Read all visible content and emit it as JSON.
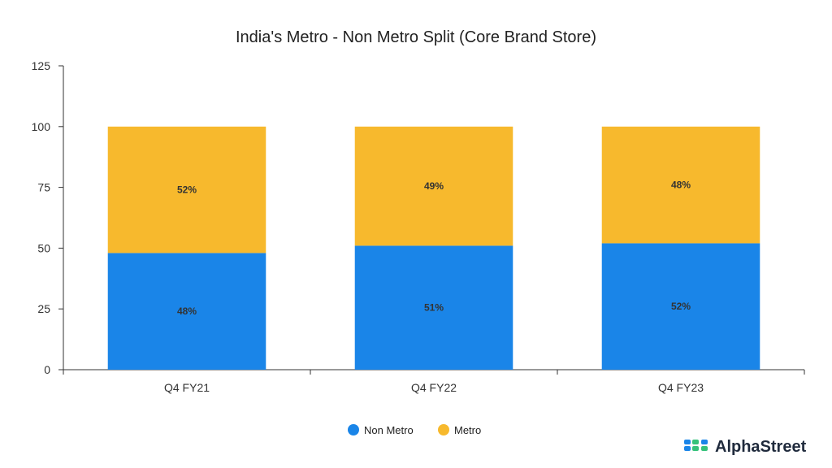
{
  "chart_data": {
    "type": "bar",
    "stacked": true,
    "title": "India's Metro - Non Metro Split (Core Brand Store)",
    "categories": [
      "Q4 FY21",
      "Q4 FY22",
      "Q4 FY23"
    ],
    "series": [
      {
        "name": "Non Metro",
        "values": [
          48,
          51,
          52
        ],
        "labels": [
          "48%",
          "51%",
          "52%"
        ],
        "color": "#1a85e8"
      },
      {
        "name": "Metro",
        "values": [
          52,
          49,
          48
        ],
        "labels": [
          "52%",
          "49%",
          "48%"
        ],
        "color": "#f7b92d"
      }
    ],
    "ylim": [
      0,
      125
    ],
    "yticks": [
      "0",
      "25",
      "50",
      "75",
      "100",
      "125"
    ],
    "xlabel": "",
    "ylabel": "",
    "grid": false,
    "legend_position": "bottom-center"
  },
  "branding": {
    "logo_text": "AlphaStreet",
    "logo_colors": [
      "#1a85e8",
      "#35c27a"
    ]
  }
}
